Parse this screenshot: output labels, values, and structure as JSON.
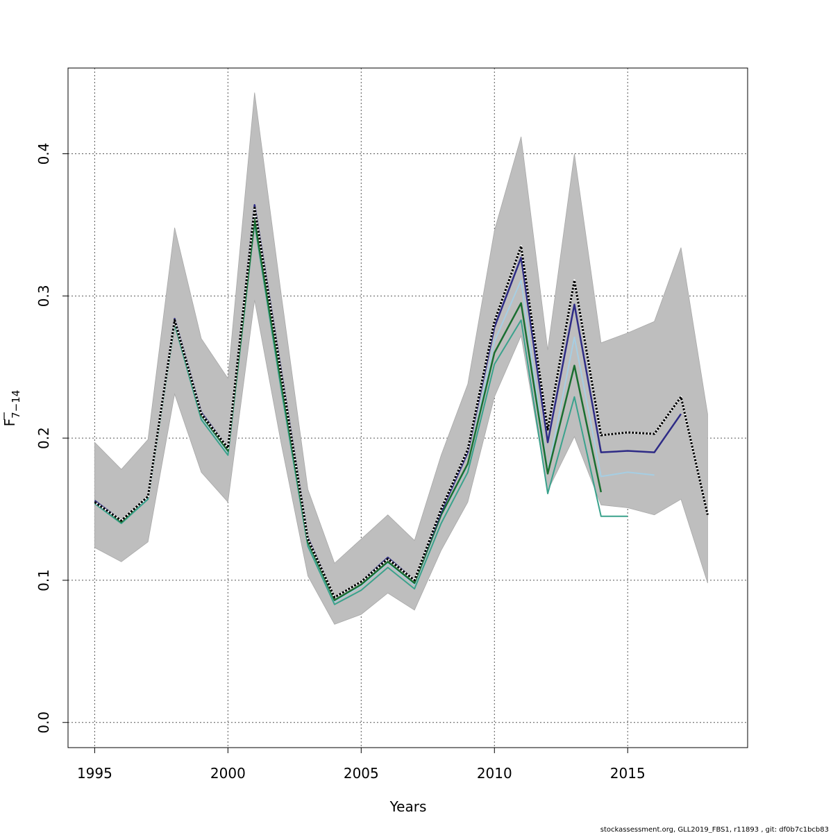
{
  "chart_data": {
    "type": "line",
    "xlabel": "Years",
    "ylabel": {
      "main": "F",
      "subscript": "7−14"
    },
    "xlim": [
      1994,
      2019.5
    ],
    "ylim": [
      -0.0177,
      0.4603
    ],
    "x_ticks": [
      1995,
      2000,
      2005,
      2010,
      2015
    ],
    "y_ticks": [
      0.0,
      0.1,
      0.2,
      0.3,
      0.4
    ],
    "y_tick_labels": [
      "0.0",
      "0.1",
      "0.2",
      "0.3",
      "0.4"
    ],
    "grid": true,
    "confidence_band": {
      "color": "#bebebe",
      "x": [
        1995,
        1996,
        1997,
        1998,
        1999,
        2000,
        2001,
        2002,
        2003,
        2004,
        2005,
        2006,
        2007,
        2008,
        2009,
        2010,
        2011,
        2012,
        2013,
        2014,
        2015,
        2016,
        2017,
        2018
      ],
      "lower": [
        0.123,
        0.113,
        0.127,
        0.231,
        0.176,
        0.155,
        0.297,
        0.196,
        0.103,
        0.069,
        0.076,
        0.091,
        0.079,
        0.121,
        0.155,
        0.229,
        0.272,
        0.163,
        0.201,
        0.153,
        0.151,
        0.146,
        0.157,
        0.098
      ],
      "upper": [
        0.197,
        0.178,
        0.199,
        0.348,
        0.27,
        0.242,
        0.443,
        0.301,
        0.164,
        0.112,
        0.129,
        0.146,
        0.128,
        0.188,
        0.238,
        0.346,
        0.412,
        0.262,
        0.4,
        0.267,
        0.274,
        0.282,
        0.334,
        0.217
      ]
    },
    "series": [
      {
        "color": "#a6cee3",
        "width": 2,
        "dashed": false,
        "x": [
          1995,
          1996,
          1997,
          1998,
          1999,
          2000,
          2001,
          2002,
          2003,
          2004,
          2005,
          2006,
          2007,
          2008,
          2009,
          2010,
          2011,
          2012,
          2013,
          2014,
          2015,
          2016
        ],
        "values": [
          0.155,
          0.141,
          0.158,
          0.281,
          0.215,
          0.19,
          0.357,
          0.238,
          0.126,
          0.085,
          0.096,
          0.112,
          0.097,
          0.145,
          0.181,
          0.268,
          0.311,
          0.176,
          0.271,
          0.173,
          0.176,
          0.174
        ]
      },
      {
        "color": "#3aa28c",
        "width": 2,
        "dashed": false,
        "x": [
          1995,
          1996,
          1997,
          1998,
          1999,
          2000,
          2001,
          2002,
          2003,
          2004,
          2005,
          2006,
          2007,
          2008,
          2009,
          2010,
          2011,
          2012,
          2013,
          2014,
          2015
        ],
        "values": [
          0.154,
          0.14,
          0.157,
          0.28,
          0.213,
          0.188,
          0.351,
          0.234,
          0.124,
          0.083,
          0.093,
          0.109,
          0.094,
          0.14,
          0.176,
          0.252,
          0.283,
          0.161,
          0.229,
          0.145,
          0.145
        ]
      },
      {
        "color": "#1a6e30",
        "width": 2.5,
        "dashed": false,
        "x": [
          1995,
          1996,
          1997,
          1998,
          1999,
          2000,
          2001,
          2002,
          2003,
          2004,
          2005,
          2006,
          2007,
          2008,
          2009,
          2010,
          2011,
          2012,
          2013,
          2014
        ],
        "values": [
          0.156,
          0.141,
          0.159,
          0.282,
          0.216,
          0.191,
          0.354,
          0.239,
          0.127,
          0.086,
          0.097,
          0.113,
          0.098,
          0.146,
          0.182,
          0.26,
          0.295,
          0.175,
          0.251,
          0.162
        ]
      },
      {
        "color": "#2e2b86",
        "width": 2.5,
        "dashed": false,
        "x": [
          1995,
          1996,
          1997,
          1998,
          1999,
          2000,
          2001,
          2002,
          2003,
          2004,
          2005,
          2006,
          2007,
          2008,
          2009,
          2010,
          2011,
          2012,
          2013,
          2014,
          2015,
          2016,
          2017
        ],
        "values": [
          0.156,
          0.142,
          0.159,
          0.284,
          0.218,
          0.193,
          0.364,
          0.247,
          0.13,
          0.088,
          0.099,
          0.116,
          0.1,
          0.148,
          0.19,
          0.278,
          0.327,
          0.197,
          0.294,
          0.19,
          0.191,
          0.19,
          0.217
        ]
      },
      {
        "color": "#000000",
        "width": 3,
        "dashed": true,
        "x": [
          1995,
          1996,
          1997,
          1998,
          1999,
          2000,
          2001,
          2002,
          2003,
          2004,
          2005,
          2006,
          2007,
          2008,
          2009,
          2010,
          2011,
          2012,
          2013,
          2014,
          2015,
          2016,
          2017,
          2018
        ],
        "values": [
          0.155,
          0.142,
          0.159,
          0.283,
          0.217,
          0.193,
          0.362,
          0.245,
          0.129,
          0.088,
          0.099,
          0.115,
          0.1,
          0.15,
          0.192,
          0.282,
          0.335,
          0.206,
          0.311,
          0.202,
          0.204,
          0.203,
          0.229,
          0.146
        ]
      }
    ]
  },
  "footer": "stockassessment.org, GLL2019_FBS1, r11893 , git: df0b7c1bcb83"
}
